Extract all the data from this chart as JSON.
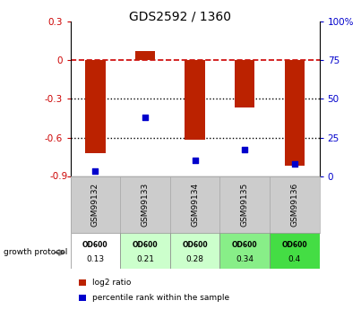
{
  "title": "GDS2592 / 1360",
  "samples": [
    "GSM99132",
    "GSM99133",
    "GSM99134",
    "GSM99135",
    "GSM99136"
  ],
  "log2_ratio": [
    -0.72,
    0.07,
    -0.62,
    -0.37,
    -0.82
  ],
  "percentile_rank": [
    3,
    38,
    10,
    17,
    8
  ],
  "ylim_left": [
    -0.9,
    0.3
  ],
  "ylim_right": [
    0,
    100
  ],
  "yticks_left": [
    -0.9,
    -0.6,
    -0.3,
    0.0,
    0.3
  ],
  "yticks_right": [
    0,
    25,
    50,
    75,
    100
  ],
  "bar_color": "#bb2200",
  "dot_color": "#0000cc",
  "dashed_line_color": "#cc0000",
  "dotted_line_color": "#000000",
  "growth_protocol_label": "growth protocol",
  "od600_values": [
    "0.13",
    "0.21",
    "0.28",
    "0.34",
    "0.4"
  ],
  "cell_colors": [
    "#ffffff",
    "#ccffcc",
    "#ccffcc",
    "#88ee88",
    "#44dd44"
  ],
  "legend_bar_label": "log2 ratio",
  "legend_dot_label": "percentile rank within the sample"
}
